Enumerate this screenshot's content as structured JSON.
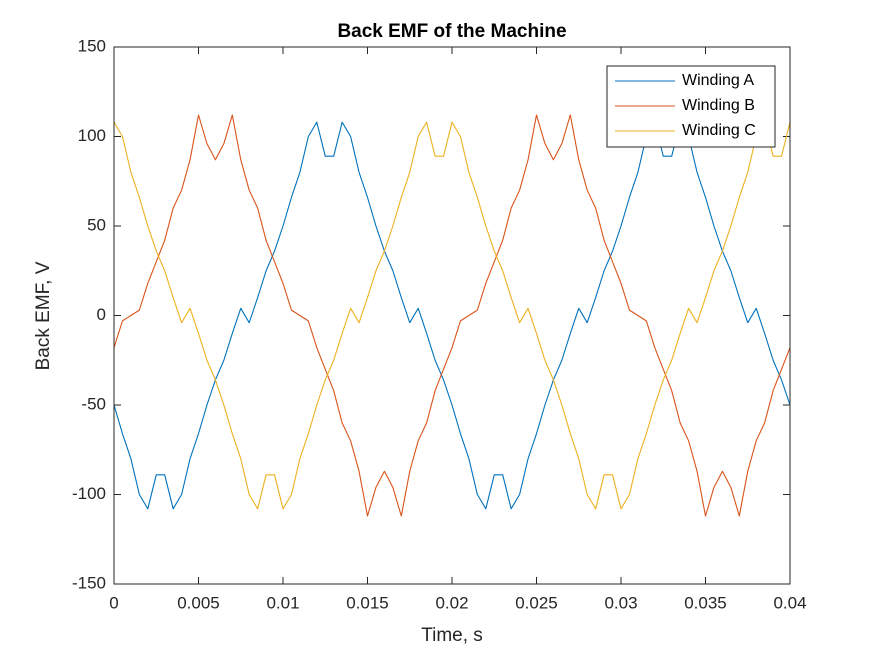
{
  "chart_data": {
    "type": "line",
    "title": "Back EMF of the Machine",
    "x_label": "Time, s",
    "y_label": "Back EMF, V",
    "x": [
      0,
      0.0005,
      0.001,
      0.0015,
      0.002,
      0.0025,
      0.003,
      0.0035,
      0.004,
      0.0045,
      0.005,
      0.0055,
      0.006,
      0.0065,
      0.007,
      0.0075,
      0.008,
      0.0085,
      0.009,
      0.0095,
      0.01,
      0.0105,
      0.011,
      0.0115,
      0.012,
      0.0125,
      0.013,
      0.0135,
      0.014,
      0.0145,
      0.015,
      0.0155,
      0.016,
      0.0165,
      0.017,
      0.0175,
      0.018,
      0.0185,
      0.019,
      0.0195,
      0.02,
      0.0205,
      0.021,
      0.0215,
      0.022,
      0.0225,
      0.023,
      0.0235,
      0.024,
      0.0245,
      0.025,
      0.0255,
      0.026,
      0.0265,
      0.027,
      0.0275,
      0.028,
      0.0285,
      0.029,
      0.0295,
      0.03,
      0.0305,
      0.031,
      0.0315,
      0.032,
      0.0325,
      0.033,
      0.0335,
      0.034,
      0.0345,
      0.035,
      0.0355,
      0.036,
      0.0365,
      0.037,
      0.0375,
      0.038,
      0.0385,
      0.039,
      0.0395,
      0.04
    ],
    "series": [
      {
        "name": "Winding A",
        "color": "#0072BD",
        "values": [
          -50,
          -66,
          -80,
          -100,
          -108,
          -89,
          -89,
          -108,
          -100,
          -80,
          -66,
          -50,
          -36,
          -25,
          -10,
          4,
          -4,
          10,
          25,
          36,
          50,
          66,
          80,
          100,
          108,
          89,
          89,
          108,
          100,
          80,
          66,
          50,
          36,
          25,
          10,
          -4,
          4,
          -10,
          -25,
          -36,
          -50,
          -66,
          -80,
          -100,
          -108,
          -89,
          -89,
          -108,
          -100,
          -80,
          -66,
          -50,
          -36,
          -25,
          -10,
          4,
          -4,
          10,
          25,
          36,
          50,
          66,
          80,
          100,
          108,
          89,
          89,
          108,
          100,
          80,
          66,
          50,
          36,
          25,
          10,
          -4,
          4,
          -10,
          -25,
          -36,
          -50
        ]
      },
      {
        "name": "Winding B",
        "color": "#D95319",
        "values": [
          -18,
          -3,
          0,
          3,
          18,
          30,
          42,
          60,
          70,
          87,
          112,
          96,
          87,
          96,
          112,
          87,
          70,
          60,
          42,
          30,
          18,
          3,
          0,
          -3,
          -18,
          -30,
          -42,
          -60,
          -70,
          -87,
          -112,
          -96,
          -87,
          -96,
          -112,
          -87,
          -70,
          -60,
          -42,
          -30,
          -18,
          -3,
          0,
          3,
          18,
          30,
          42,
          60,
          70,
          87,
          112,
          96,
          87,
          96,
          112,
          87,
          70,
          60,
          42,
          30,
          18,
          3,
          0,
          -3,
          -18,
          -30,
          -42,
          -60,
          -70,
          -87,
          -112,
          -96,
          -87,
          -96,
          -112,
          -87,
          -70,
          -60,
          -42,
          -30,
          -18
        ]
      },
      {
        "name": "Winding C",
        "color": "#EDB120",
        "values": [
          108,
          100,
          80,
          66,
          50,
          36,
          25,
          10,
          -4,
          4,
          -10,
          -25,
          -36,
          -50,
          -66,
          -80,
          -100,
          -108,
          -89,
          -89,
          -108,
          -100,
          -80,
          -66,
          -50,
          -36,
          -25,
          -10,
          4,
          -4,
          10,
          25,
          36,
          50,
          66,
          80,
          100,
          108,
          89,
          89,
          108,
          100,
          80,
          66,
          50,
          36,
          25,
          10,
          -4,
          4,
          -10,
          -25,
          -36,
          -50,
          -66,
          -80,
          -100,
          -108,
          -89,
          -89,
          -108,
          -100,
          -80,
          -66,
          -50,
          -36,
          -25,
          -10,
          4,
          -4,
          10,
          25,
          36,
          50,
          66,
          80,
          100,
          108,
          89,
          89,
          108
        ]
      }
    ],
    "xlim": [
      0,
      0.04
    ],
    "xticks": [
      0,
      0.005,
      0.01,
      0.015,
      0.02,
      0.025,
      0.03,
      0.035,
      0.04
    ],
    "ylim": [
      -150,
      150
    ],
    "yticks": [
      -150,
      -100,
      -50,
      0,
      50,
      100,
      150
    ],
    "grid": false,
    "legend": "northeast"
  }
}
